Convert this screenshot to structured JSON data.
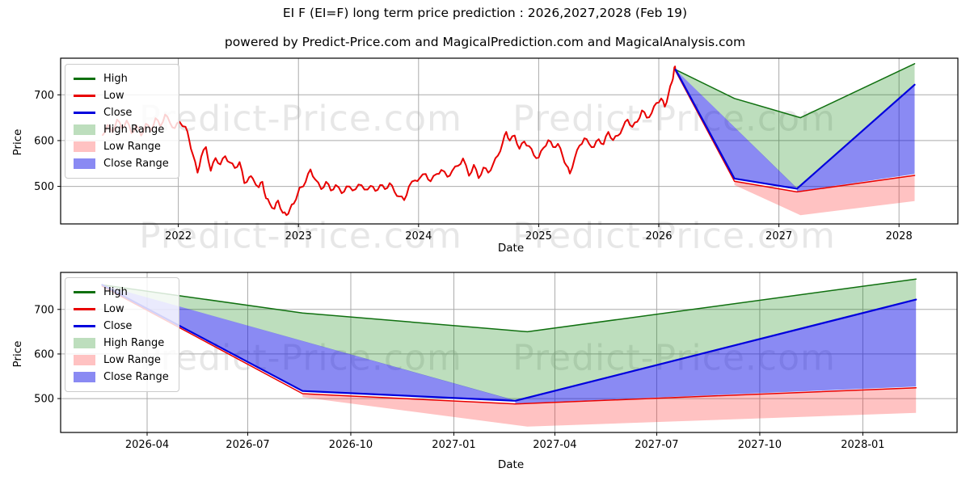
{
  "title": "EI F (EI=F) long term price prediction : 2026,2027,2028 (Feb 19)",
  "subtitle": "powered by Predict-Price.com and MagicalPrediction.com and MagicalAnalysis.com",
  "watermark_text": "Predict-Price.com",
  "colors": {
    "high_line": "#107010",
    "low_line": "#e80000",
    "close_line": "#0000dd",
    "high_range_fill": "rgba(0,128,0,0.26)",
    "low_range_fill": "rgba(255,30,30,0.27)",
    "close_range_fill": "rgba(10,10,230,0.48)",
    "grid": "#ababab",
    "frame": "#000000"
  },
  "legend": {
    "items": [
      {
        "label": "High",
        "type": "line",
        "color": "#107010"
      },
      {
        "label": "Low",
        "type": "line",
        "color": "#e80000"
      },
      {
        "label": "Close",
        "type": "line",
        "color": "#0000dd"
      },
      {
        "label": "High Range",
        "type": "patch",
        "color": "rgba(0,128,0,0.26)"
      },
      {
        "label": "Low Range",
        "type": "patch",
        "color": "rgba(255,30,30,0.27)"
      },
      {
        "label": "Close Range",
        "type": "patch",
        "color": "rgba(10,10,230,0.48)"
      }
    ]
  },
  "chart_data": [
    {
      "type": "line",
      "name": "long-term-history-and-prediction",
      "xlabel": "Date",
      "ylabel": "Price",
      "grid": true,
      "legend_position": "upper left",
      "xlim": [
        2021.02,
        2028.49
      ],
      "ylim": [
        418,
        780
      ],
      "xticks": [
        {
          "v": 2022,
          "label": "2022"
        },
        {
          "v": 2023,
          "label": "2023"
        },
        {
          "v": 2024,
          "label": "2024"
        },
        {
          "v": 2025,
          "label": "2025"
        },
        {
          "v": 2026,
          "label": "2026"
        },
        {
          "v": 2027,
          "label": "2027"
        },
        {
          "v": 2028,
          "label": "2028"
        }
      ],
      "yticks": [
        {
          "v": 500,
          "label": "500"
        },
        {
          "v": 600,
          "label": "600"
        },
        {
          "v": 700,
          "label": "700"
        }
      ],
      "bands": [
        {
          "name": "High Range",
          "fill": "rgba(0,128,0,0.26)",
          "polygons": [
            [
              [
                2026.14,
                755
              ],
              [
                2026.63,
                692
              ],
              [
                2027.18,
                650
              ],
              [
                2028.13,
                768
              ],
              [
                2028.13,
                722
              ],
              [
                2027.15,
                495
              ]
            ]
          ]
        },
        {
          "name": "Low Range",
          "fill": "rgba(255,30,30,0.27)",
          "polygons": [
            [
              [
                2026.63,
                511
              ],
              [
                2027.15,
                488
              ],
              [
                2028.13,
                524
              ],
              [
                2028.13,
                468
              ],
              [
                2027.18,
                437
              ],
              [
                2026.63,
                503
              ]
            ]
          ]
        },
        {
          "name": "Close Range",
          "fill": "rgba(10,10,230,0.48)",
          "polygons": [
            [
              [
                2026.14,
                755
              ],
              [
                2027.15,
                496
              ],
              [
                2026.63,
                517
              ]
            ],
            [
              [
                2027.15,
                495
              ],
              [
                2028.13,
                722
              ],
              [
                2028.13,
                527
              ],
              [
                2027.15,
                489
              ]
            ]
          ]
        }
      ],
      "series": [
        {
          "name": "low-history",
          "color": "#e80000",
          "width": 2.0,
          "noisy": true,
          "points": [
            [
              2021.37,
              612
            ],
            [
              2021.41,
              634
            ],
            [
              2021.45,
              618
            ],
            [
              2021.49,
              646
            ],
            [
              2021.53,
              627
            ],
            [
              2021.57,
              644
            ],
            [
              2021.61,
              616
            ],
            [
              2021.65,
              633
            ],
            [
              2021.69,
              611
            ],
            [
              2021.73,
              637
            ],
            [
              2021.77,
              621
            ],
            [
              2021.81,
              649
            ],
            [
              2021.85,
              631
            ],
            [
              2021.89,
              657
            ],
            [
              2021.93,
              639
            ],
            [
              2021.97,
              627
            ],
            [
              2022.01,
              641
            ],
            [
              2022.06,
              630
            ],
            [
              2022.09,
              602
            ],
            [
              2022.12,
              570
            ],
            [
              2022.16,
              530
            ],
            [
              2022.19,
              565
            ],
            [
              2022.23,
              586
            ],
            [
              2022.27,
              534
            ],
            [
              2022.31,
              562
            ],
            [
              2022.35,
              548
            ],
            [
              2022.39,
              566
            ],
            [
              2022.43,
              552
            ],
            [
              2022.47,
              540
            ],
            [
              2022.51,
              553
            ],
            [
              2022.55,
              507
            ],
            [
              2022.59,
              520
            ],
            [
              2022.62,
              517
            ],
            [
              2022.67,
              498
            ],
            [
              2022.7,
              510
            ],
            [
              2022.73,
              474
            ],
            [
              2022.76,
              463
            ],
            [
              2022.8,
              451
            ],
            [
              2022.83,
              469
            ],
            [
              2022.87,
              442
            ],
            [
              2022.9,
              437
            ],
            [
              2022.93,
              451
            ],
            [
              2022.96,
              462
            ],
            [
              2023.0,
              489
            ],
            [
              2023.02,
              498
            ],
            [
              2023.06,
              510
            ],
            [
              2023.1,
              537
            ],
            [
              2023.14,
              515
            ],
            [
              2023.19,
              494
            ],
            [
              2023.23,
              510
            ],
            [
              2023.27,
              491
            ],
            [
              2023.31,
              503
            ],
            [
              2023.36,
              485
            ],
            [
              2023.4,
              500
            ],
            [
              2023.45,
              491
            ],
            [
              2023.5,
              504
            ],
            [
              2023.55,
              493
            ],
            [
              2023.6,
              501
            ],
            [
              2023.64,
              490
            ],
            [
              2023.68,
              503
            ],
            [
              2023.72,
              494
            ],
            [
              2023.76,
              507
            ],
            [
              2023.8,
              488
            ],
            [
              2023.84,
              478
            ],
            [
              2023.88,
              470
            ],
            [
              2023.92,
              500
            ],
            [
              2023.97,
              513
            ],
            [
              2024.01,
              518
            ],
            [
              2024.06,
              527
            ],
            [
              2024.1,
              511
            ],
            [
              2024.15,
              527
            ],
            [
              2024.19,
              536
            ],
            [
              2024.24,
              521
            ],
            [
              2024.28,
              534
            ],
            [
              2024.33,
              545
            ],
            [
              2024.37,
              561
            ],
            [
              2024.42,
              523
            ],
            [
              2024.46,
              547
            ],
            [
              2024.5,
              518
            ],
            [
              2024.54,
              541
            ],
            [
              2024.58,
              530
            ],
            [
              2024.62,
              548
            ],
            [
              2024.66,
              567
            ],
            [
              2024.7,
              595
            ],
            [
              2024.73,
              619
            ],
            [
              2024.76,
              600
            ],
            [
              2024.8,
              611
            ],
            [
              2024.84,
              582
            ],
            [
              2024.88,
              598
            ],
            [
              2024.92,
              588
            ],
            [
              2024.96,
              568
            ],
            [
              2025.0,
              563
            ],
            [
              2025.04,
              584
            ],
            [
              2025.08,
              601
            ],
            [
              2025.12,
              586
            ],
            [
              2025.16,
              593
            ],
            [
              2025.2,
              566
            ],
            [
              2025.23,
              546
            ],
            [
              2025.26,
              528
            ],
            [
              2025.3,
              562
            ],
            [
              2025.34,
              589
            ],
            [
              2025.38,
              605
            ],
            [
              2025.42,
              593
            ],
            [
              2025.46,
              586
            ],
            [
              2025.5,
              603
            ],
            [
              2025.54,
              592
            ],
            [
              2025.58,
              619
            ],
            [
              2025.62,
              601
            ],
            [
              2025.66,
              611
            ],
            [
              2025.7,
              628
            ],
            [
              2025.74,
              646
            ],
            [
              2025.78,
              630
            ],
            [
              2025.82,
              641
            ],
            [
              2025.86,
              666
            ],
            [
              2025.9,
              650
            ],
            [
              2025.94,
              660
            ],
            [
              2025.98,
              682
            ],
            [
              2026.02,
              692
            ],
            [
              2026.05,
              674
            ],
            [
              2026.08,
              701
            ],
            [
              2026.11,
              728
            ],
            [
              2026.125,
              750
            ],
            [
              2026.135,
              762
            ],
            [
              2026.14,
              755
            ]
          ]
        },
        {
          "name": "high-forecast",
          "color": "#107010",
          "width": 1.5,
          "points": [
            [
              2026.14,
              755
            ],
            [
              2026.63,
              692
            ],
            [
              2027.18,
              650
            ],
            [
              2028.13,
              768
            ]
          ]
        },
        {
          "name": "low-forecast",
          "color": "#e80000",
          "width": 1.5,
          "points": [
            [
              2026.14,
              752
            ],
            [
              2026.63,
              511
            ],
            [
              2027.15,
              488
            ],
            [
              2028.13,
              524
            ]
          ]
        },
        {
          "name": "close-forecast",
          "color": "#0000dd",
          "width": 2.2,
          "points": [
            [
              2026.14,
              755
            ],
            [
              2026.63,
              517
            ],
            [
              2027.15,
              495
            ],
            [
              2028.13,
              722
            ]
          ]
        }
      ]
    },
    {
      "type": "line",
      "name": "prediction-detail-2026-2028",
      "xlabel": "Date",
      "ylabel": "Price",
      "grid": true,
      "legend_position": "upper left",
      "xlim": [
        2026.0385,
        2028.2304
      ],
      "ylim": [
        424,
        783
      ],
      "xticks": [
        {
          "v": 2026.25,
          "label": "2026-04"
        },
        {
          "v": 2026.496,
          "label": "2026-07"
        },
        {
          "v": 2026.748,
          "label": "2026-10"
        },
        {
          "v": 2027.0,
          "label": "2027-01"
        },
        {
          "v": 2027.247,
          "label": "2027-04"
        },
        {
          "v": 2027.496,
          "label": "2027-07"
        },
        {
          "v": 2027.748,
          "label": "2027-10"
        },
        {
          "v": 2028.0,
          "label": "2028-01"
        }
      ],
      "yticks": [
        {
          "v": 500,
          "label": "500"
        },
        {
          "v": 600,
          "label": "600"
        },
        {
          "v": 700,
          "label": "700"
        }
      ],
      "bands": [
        {
          "name": "High Range",
          "fill": "rgba(0,128,0,0.26)",
          "polygons": [
            [
              [
                2026.14,
                755
              ],
              [
                2026.63,
                692
              ],
              [
                2027.18,
                650
              ],
              [
                2028.13,
                768
              ],
              [
                2028.13,
                722
              ],
              [
                2027.15,
                495
              ]
            ]
          ]
        },
        {
          "name": "Low Range",
          "fill": "rgba(255,30,30,0.27)",
          "polygons": [
            [
              [
                2026.63,
                511
              ],
              [
                2027.15,
                488
              ],
              [
                2028.13,
                524
              ],
              [
                2028.13,
                468
              ],
              [
                2027.18,
                437
              ],
              [
                2026.63,
                503
              ]
            ]
          ]
        },
        {
          "name": "Close Range",
          "fill": "rgba(10,10,230,0.48)",
          "polygons": [
            [
              [
                2026.14,
                755
              ],
              [
                2027.15,
                496
              ],
              [
                2026.63,
                517
              ]
            ],
            [
              [
                2027.15,
                495
              ],
              [
                2028.13,
                722
              ],
              [
                2028.13,
                527
              ],
              [
                2027.15,
                489
              ]
            ]
          ]
        }
      ],
      "series": [
        {
          "name": "high-forecast",
          "color": "#107010",
          "width": 1.5,
          "points": [
            [
              2026.14,
              755
            ],
            [
              2026.63,
              692
            ],
            [
              2027.18,
              650
            ],
            [
              2028.13,
              768
            ]
          ]
        },
        {
          "name": "low-forecast",
          "color": "#e80000",
          "width": 1.5,
          "points": [
            [
              2026.14,
              752
            ],
            [
              2026.63,
              511
            ],
            [
              2027.15,
              488
            ],
            [
              2028.13,
              524
            ]
          ]
        },
        {
          "name": "close-forecast",
          "color": "#0000dd",
          "width": 2.2,
          "points": [
            [
              2026.14,
              755
            ],
            [
              2026.63,
              517
            ],
            [
              2027.15,
              495
            ],
            [
              2028.13,
              722
            ]
          ]
        }
      ]
    }
  ]
}
